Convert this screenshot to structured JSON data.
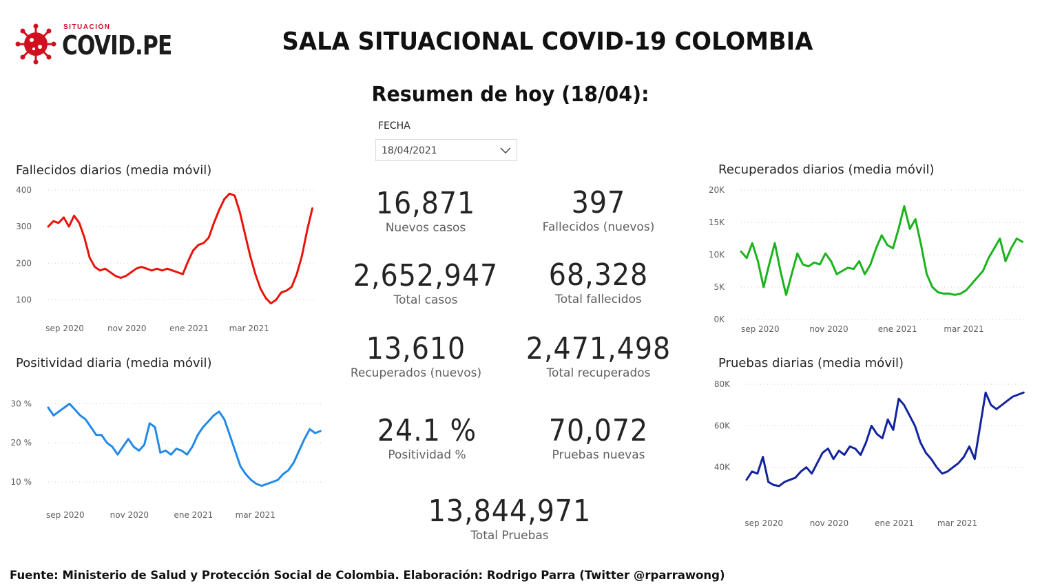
{
  "header": {
    "logo_sup": "SITUACIÓN",
    "logo_main": "COVID.PE",
    "title": "SALA SITUACIONAL COVID-19 COLOMBIA",
    "summary_title": "Resumen de hoy (18/04):"
  },
  "slicer": {
    "label": "FECHA",
    "value": "18/04/2021",
    "icon": "chevron-down-icon"
  },
  "kpis": [
    {
      "value": "16,871",
      "label": "Nuevos casos"
    },
    {
      "value": "397",
      "label": "Fallecidos (nuevos)"
    },
    {
      "value": "2,652,947",
      "label": "Total casos"
    },
    {
      "value": "68,328",
      "label": "Total fallecidos"
    },
    {
      "value": "13,610",
      "label": "Recuperados (nuevos)"
    },
    {
      "value": "2,471,498",
      "label": "Total recuperados"
    },
    {
      "value": "24.1 %",
      "label": "Positividad %"
    },
    {
      "value": "70,072",
      "label": "Pruebas nuevas"
    },
    {
      "value": "13,844,971",
      "label": "Total Pruebas"
    }
  ],
  "footer": {
    "source": "Fuente: Ministerio de Salud y Protección Social de Colombia. Elaboración: Rodrigo Parra (Twitter @rparrawong)"
  },
  "chart_data": [
    {
      "id": "deaths",
      "type": "line",
      "title": "Fallecidos diarios (media móvil)",
      "color": "#e8130b",
      "ylim": [
        80,
        400
      ],
      "yticks": [
        100,
        200,
        300,
        400
      ],
      "yticklabels": [
        "100",
        "200",
        "300",
        "400"
      ],
      "xticklabels": [
        "sep 2020",
        "nov 2020",
        "ene 2021",
        "mar 2021"
      ],
      "xtick_days": [
        16,
        76,
        136,
        194
      ],
      "xlim_days": [
        0,
        258
      ],
      "grid": true,
      "x_days": [
        0,
        5,
        10,
        15,
        20,
        25,
        30,
        35,
        40,
        45,
        50,
        55,
        60,
        65,
        70,
        75,
        80,
        85,
        90,
        95,
        100,
        105,
        110,
        115,
        120,
        125,
        130,
        135,
        140,
        145,
        150,
        155,
        160,
        165,
        170,
        175,
        180,
        185,
        190,
        195,
        200,
        205,
        210,
        215,
        220,
        225,
        230,
        235,
        240,
        245,
        250,
        255
      ],
      "values": [
        300,
        315,
        310,
        325,
        300,
        330,
        310,
        270,
        215,
        190,
        180,
        185,
        175,
        165,
        160,
        165,
        175,
        185,
        190,
        185,
        180,
        185,
        180,
        185,
        180,
        175,
        170,
        205,
        235,
        250,
        255,
        270,
        310,
        345,
        375,
        390,
        385,
        340,
        280,
        220,
        170,
        130,
        105,
        90,
        100,
        120,
        125,
        135,
        170,
        220,
        290,
        350
      ]
    },
    {
      "id": "positivity",
      "type": "line",
      "title": "Positividad diaria (media móvil)",
      "color": "#2189e8",
      "ylim": [
        7,
        32
      ],
      "yticks": [
        10,
        20,
        30
      ],
      "yticklabels": [
        "10 %",
        "20 %",
        "30 %"
      ],
      "xticklabels": [
        "sep 2020",
        "nov 2020",
        "ene 2021",
        "mar 2021"
      ],
      "xtick_days": [
        16,
        76,
        136,
        194
      ],
      "xlim_days": [
        0,
        258
      ],
      "grid": true,
      "x_days": [
        0,
        5,
        10,
        15,
        20,
        25,
        30,
        35,
        40,
        45,
        50,
        55,
        60,
        65,
        70,
        75,
        80,
        85,
        90,
        95,
        100,
        105,
        110,
        115,
        120,
        125,
        130,
        135,
        140,
        145,
        150,
        155,
        160,
        165,
        170,
        175,
        180,
        185,
        190,
        195,
        200,
        205,
        210,
        215,
        220,
        225,
        230,
        235,
        240,
        245,
        250,
        255
      ],
      "values": [
        29,
        27,
        28,
        29,
        30,
        28.5,
        27,
        26,
        24,
        22,
        22,
        20,
        19,
        17,
        19,
        21,
        19,
        18,
        19.5,
        25,
        24,
        17.5,
        18,
        17,
        18.5,
        18,
        17,
        19,
        22,
        24,
        25.5,
        27,
        28,
        26,
        22,
        18,
        14,
        12,
        10.5,
        9.5,
        9,
        9.5,
        10,
        10.5,
        12,
        13,
        15,
        18,
        21,
        23.5,
        22.5,
        23
      ]
    },
    {
      "id": "recovered",
      "type": "line",
      "title": "Recuperados diarios (media móvil)",
      "color": "#1bb31b",
      "ylim": [
        0,
        20000
      ],
      "yticks": [
        0,
        5000,
        10000,
        15000,
        20000
      ],
      "yticklabels": [
        "0K",
        "5K",
        "10K",
        "15K",
        "20K"
      ],
      "xticklabels": [
        "sep 2020",
        "nov 2020",
        "ene 2021",
        "mar 2021"
      ],
      "xtick_days": [
        0,
        61,
        122,
        181
      ],
      "xlim_days": [
        -17,
        237
      ],
      "grid": true,
      "x_days": [
        -17,
        -12,
        -7,
        -2,
        3,
        8,
        13,
        18,
        23,
        28,
        33,
        38,
        43,
        48,
        53,
        58,
        63,
        68,
        73,
        78,
        83,
        88,
        93,
        98,
        103,
        108,
        113,
        118,
        123,
        128,
        133,
        138,
        143,
        148,
        153,
        158,
        163,
        168,
        173,
        178,
        183,
        188,
        193,
        198,
        203,
        208,
        213,
        218,
        223,
        228,
        233
      ],
      "values": [
        10500,
        9500,
        11800,
        9000,
        5000,
        8500,
        11800,
        7500,
        3800,
        7000,
        10200,
        8500,
        8200,
        8800,
        8500,
        10200,
        9000,
        7000,
        7500,
        8000,
        7800,
        9000,
        7000,
        8500,
        11000,
        13000,
        11500,
        11000,
        14000,
        17500,
        14000,
        15500,
        11500,
        7000,
        5000,
        4200,
        4000,
        4000,
        3800,
        4000,
        4500,
        5500,
        6500,
        7500,
        9500,
        11000,
        12500,
        9000,
        11000,
        12500,
        12000
      ]
    },
    {
      "id": "tests",
      "type": "line",
      "title": "Pruebas diarias (media móvil)",
      "color": "#12239e",
      "ylim": [
        25000,
        80000
      ],
      "yticks": [
        40000,
        60000,
        80000
      ],
      "yticklabels": [
        "40K",
        "60K",
        "80K"
      ],
      "xticklabels": [
        "sep 2020",
        "nov 2020",
        "ene 2021",
        "mar 2021"
      ],
      "xtick_days": [
        16,
        76,
        136,
        194
      ],
      "xlim_days": [
        0,
        258
      ],
      "grid": true,
      "x_days": [
        0,
        5,
        10,
        15,
        20,
        25,
        30,
        35,
        40,
        45,
        50,
        55,
        60,
        65,
        70,
        75,
        80,
        85,
        90,
        95,
        100,
        105,
        110,
        115,
        120,
        125,
        130,
        135,
        140,
        145,
        150,
        155,
        160,
        165,
        170,
        175,
        180,
        185,
        190,
        195,
        200,
        205,
        210,
        215,
        220,
        225,
        230,
        235,
        240,
        245,
        250,
        255
      ],
      "values": [
        34000,
        38000,
        37000,
        45000,
        33000,
        31500,
        31000,
        33000,
        34000,
        35000,
        38000,
        40000,
        37000,
        42000,
        47000,
        49000,
        44000,
        48000,
        46000,
        50000,
        49000,
        46000,
        52000,
        60000,
        56000,
        54000,
        63000,
        58000,
        73000,
        70000,
        65000,
        60000,
        52000,
        47000,
        44000,
        40000,
        37000,
        38000,
        40000,
        42000,
        45000,
        50000,
        44000,
        60000,
        76000,
        70000,
        68000,
        70000,
        72000,
        74000,
        75000,
        76000
      ]
    }
  ]
}
